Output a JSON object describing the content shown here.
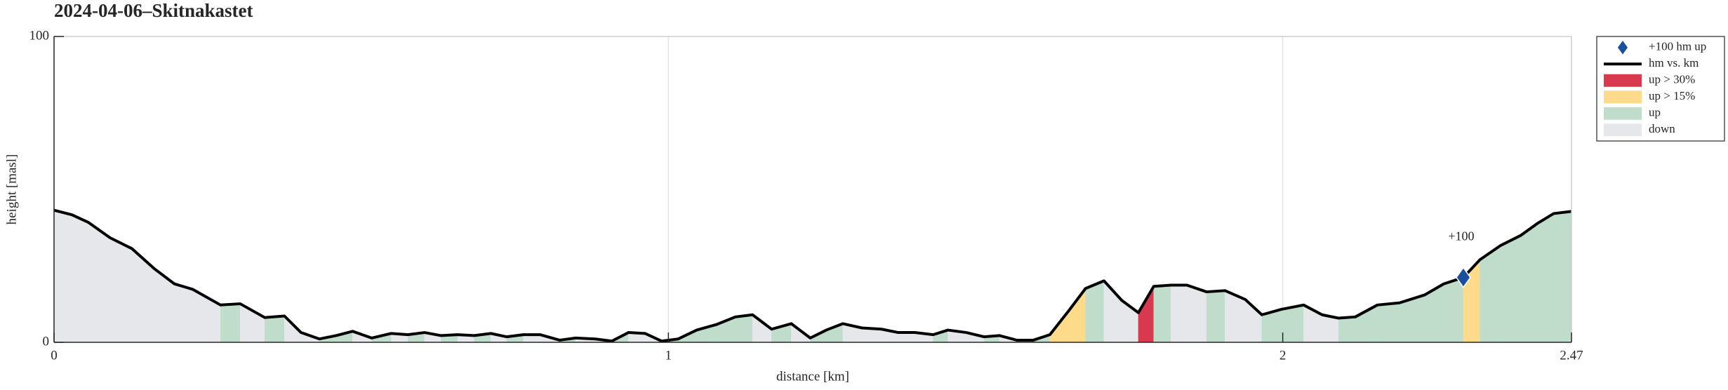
{
  "chart_data": {
    "type": "elevation-profile",
    "title": "2024-04-06–Skitnakastet",
    "x_label": "distance [km]",
    "y_label": "height [masl]",
    "xlim": [
      0,
      2.47
    ],
    "ylim": [
      0,
      100
    ],
    "xticks": [
      0,
      1,
      2,
      2.47
    ],
    "yticks": [
      0,
      100
    ],
    "grid": true,
    "series": [
      {
        "name": "hm vs. km",
        "color": "#000000",
        "x": [
          0,
          0.029,
          0.056,
          0.091,
          0.127,
          0.163,
          0.196,
          0.226,
          0.271,
          0.303,
          0.343,
          0.375,
          0.402,
          0.432,
          0.459,
          0.486,
          0.517,
          0.549,
          0.576,
          0.603,
          0.63,
          0.657,
          0.684,
          0.711,
          0.737,
          0.764,
          0.791,
          0.823,
          0.849,
          0.881,
          0.908,
          0.935,
          0.962,
          0.989,
          1.016,
          1.046,
          1.078,
          1.109,
          1.137,
          1.168,
          1.2,
          1.231,
          1.257,
          1.284,
          1.315,
          1.347,
          1.374,
          1.401,
          1.431,
          1.455,
          1.485,
          1.514,
          1.539,
          1.567,
          1.594,
          1.621,
          1.652,
          1.679,
          1.709,
          1.738,
          1.765,
          1.79,
          1.818,
          1.844,
          1.876,
          1.906,
          1.939,
          1.966,
          1.998,
          2.034,
          2.064,
          2.091,
          2.118,
          2.154,
          2.19,
          2.231,
          2.262,
          2.294,
          2.321,
          2.355,
          2.387,
          2.414,
          2.441,
          2.47
        ],
        "values": [
          43.2,
          41.7,
          39.2,
          34.2,
          30.6,
          24.1,
          19.1,
          17.3,
          12.2,
          12.6,
          8.1,
          8.6,
          3.2,
          1.1,
          2.2,
          3.6,
          1.4,
          2.9,
          2.5,
          3.2,
          2.2,
          2.5,
          2.2,
          2.9,
          1.8,
          2.5,
          2.5,
          0.7,
          1.4,
          1.1,
          0.4,
          3.2,
          2.9,
          0.4,
          1.1,
          4.0,
          5.8,
          8.3,
          9.0,
          4.3,
          6.1,
          1.4,
          4.0,
          6.1,
          4.7,
          4.3,
          3.2,
          3.2,
          2.5,
          4.0,
          3.2,
          1.8,
          2.2,
          0.7,
          0.7,
          2.5,
          10.4,
          17.6,
          20.1,
          13.7,
          9.7,
          18.3,
          18.7,
          18.7,
          16.5,
          16.9,
          14.0,
          9.0,
          10.8,
          12.2,
          9.0,
          7.9,
          8.3,
          12.2,
          12.9,
          15.5,
          19.1,
          21.2,
          27.0,
          31.7,
          34.9,
          38.8,
          42.1,
          42.8
        ]
      }
    ],
    "markers": {
      "name": "+100 hm up",
      "color": "#1a4fa0",
      "points": [
        {
          "x": 2.294,
          "y": 21.2,
          "label": "+100"
        }
      ]
    },
    "fill_classes": [
      {
        "name": "up > 30%",
        "color": "#d9394e",
        "min_grade": 30
      },
      {
        "name": "up > 15%",
        "color": "#fddb8a",
        "min_grade": 15
      },
      {
        "name": "up",
        "color": "#c0ddcc",
        "min_grade": 0
      },
      {
        "name": "down",
        "color": "#e6e7ea"
      }
    ],
    "legend_position": "outside-top-right"
  }
}
